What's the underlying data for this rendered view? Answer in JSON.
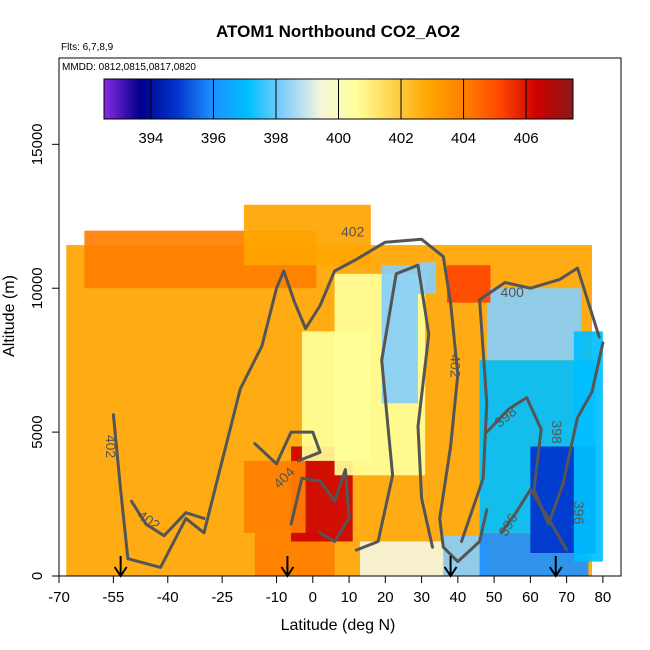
{
  "chart_data": {
    "type": "heatmap",
    "title": "ATOM1 Northbound CO2_AO2",
    "notes": [
      "Flts: 6,7,8,9",
      "MMDD: 0812,0815,0817,0820"
    ],
    "xlabel": "Latitude (deg N)",
    "ylabel": "Altitude (m)",
    "xlim": [
      -70,
      85
    ],
    "ylim": [
      0,
      18000
    ],
    "x_ticks": [
      "-70",
      "-55",
      "-40",
      "-25",
      "-10",
      "0",
      "10",
      "20",
      "30",
      "40",
      "50",
      "60",
      "70",
      "80"
    ],
    "x_tick_values": [
      -70,
      -55,
      -40,
      -25,
      -10,
      0,
      10,
      20,
      30,
      40,
      50,
      60,
      70,
      80
    ],
    "y_ticks": [
      "0",
      "5000",
      "10000",
      "15000"
    ],
    "y_tick_values": [
      0,
      5000,
      10000,
      15000
    ],
    "colorbar": {
      "min": 392.5,
      "max": 407.5,
      "ticks": [
        "394",
        "396",
        "398",
        "400",
        "402",
        "404",
        "406"
      ],
      "tick_values": [
        394,
        396,
        398,
        400,
        402,
        404,
        406
      ],
      "colors": [
        "#8a2be2",
        "#00008b",
        "#0033cc",
        "#1e90ff",
        "#00bfff",
        "#87cefa",
        "#f5f5dc",
        "#ffff99",
        "#ffd24d",
        "#ffa500",
        "#ff7f00",
        "#ff4500",
        "#cc0000",
        "#8b1a1a"
      ]
    },
    "regions": [
      {
        "lat_min": -68,
        "lat_max": 77,
        "alt_min": 0,
        "alt_max": 11500,
        "co2": 402.5
      },
      {
        "lat_min": -63,
        "lat_max": 1,
        "alt_min": 10000,
        "alt_max": 12000,
        "co2": 404
      },
      {
        "lat_min": -19,
        "lat_max": 16,
        "alt_min": 10800,
        "alt_max": 12900,
        "co2": 403
      },
      {
        "lat_min": -16,
        "lat_max": 6,
        "alt_min": 0,
        "alt_max": 1500,
        "co2": 404.5
      },
      {
        "lat_min": -6,
        "lat_max": 11,
        "alt_min": 1200,
        "alt_max": 4500,
        "co2": 406
      },
      {
        "lat_min": -19,
        "lat_max": -2,
        "alt_min": 1500,
        "alt_max": 4000,
        "co2": 404.5
      },
      {
        "lat_min": -3,
        "lat_max": 16,
        "alt_min": 4000,
        "alt_max": 8500,
        "co2": 401
      },
      {
        "lat_min": 6,
        "lat_max": 31,
        "alt_min": 3500,
        "alt_max": 10500,
        "co2": 400
      },
      {
        "lat_min": 19,
        "lat_max": 29,
        "alt_min": 6000,
        "alt_max": 10800,
        "co2": 398.8
      },
      {
        "lat_min": 13,
        "lat_max": 36,
        "alt_min": 0,
        "alt_max": 1200,
        "co2": 399.5
      },
      {
        "lat_min": 36,
        "lat_max": 48,
        "alt_min": 0,
        "alt_max": 1400,
        "co2": 398
      },
      {
        "lat_min": 46,
        "lat_max": 76,
        "alt_min": 0,
        "alt_max": 1500,
        "co2": 395.5
      },
      {
        "lat_min": 46,
        "lat_max": 78,
        "alt_min": 1500,
        "alt_max": 7500,
        "co2": 397.2
      },
      {
        "lat_min": 48,
        "lat_max": 74,
        "alt_min": 7500,
        "alt_max": 10000,
        "co2": 397.8
      },
      {
        "lat_min": 60,
        "lat_max": 78,
        "alt_min": 800,
        "alt_max": 4500,
        "co2": 395
      },
      {
        "lat_min": 72,
        "lat_max": 80,
        "alt_min": 500,
        "alt_max": 8500,
        "co2": 397
      },
      {
        "lat_min": 37,
        "lat_max": 49,
        "alt_min": 9500,
        "alt_max": 10800,
        "co2": 405
      },
      {
        "lat_min": 29,
        "lat_max": 34,
        "alt_min": 9800,
        "alt_max": 10900,
        "co2": 398.5
      }
    ],
    "contours": [
      {
        "level": "402",
        "points": [
          [
            -55,
            5600
          ],
          [
            -53,
            3000
          ],
          [
            -51,
            600
          ],
          [
            -42,
            300
          ],
          [
            -35,
            2000
          ],
          [
            -30,
            1500
          ],
          [
            -26,
            3500
          ],
          [
            -20,
            6500
          ],
          [
            -14,
            8000
          ],
          [
            -10,
            10000
          ],
          [
            -8,
            10600
          ],
          [
            -5,
            9500
          ],
          [
            -2,
            8600
          ],
          [
            2,
            9400
          ],
          [
            6,
            10600
          ],
          [
            12,
            11000
          ],
          [
            20,
            11600
          ],
          [
            30,
            11700
          ],
          [
            36,
            11100
          ],
          [
            38,
            9500
          ],
          [
            40,
            7000
          ],
          [
            38,
            4500
          ],
          [
            35,
            2000
          ],
          [
            36,
            1000
          ],
          [
            40,
            500
          ],
          [
            46,
            1200
          ],
          [
            48,
            2300
          ]
        ]
      },
      {
        "level": "402",
        "points": [
          [
            -50,
            2600
          ],
          [
            -46,
            1800
          ],
          [
            -41,
            1400
          ],
          [
            -35,
            2200
          ],
          [
            -30,
            2000
          ]
        ]
      },
      {
        "level": "400",
        "points": [
          [
            12,
            900
          ],
          [
            18,
            1200
          ],
          [
            22,
            3500
          ],
          [
            19,
            7500
          ],
          [
            23,
            10500
          ],
          [
            29,
            10800
          ],
          [
            32,
            8400
          ],
          [
            29,
            5200
          ],
          [
            30,
            2700
          ],
          [
            33,
            1000
          ]
        ]
      },
      {
        "level": "400",
        "points": [
          [
            41,
            1200
          ],
          [
            47,
            3400
          ],
          [
            48,
            6000
          ],
          [
            46,
            9600
          ],
          [
            53,
            10200
          ],
          [
            60,
            10000
          ],
          [
            68,
            10300
          ],
          [
            73,
            10700
          ],
          [
            76,
            9500
          ],
          [
            79,
            8300
          ]
        ]
      },
      {
        "level": "398",
        "points": [
          [
            48,
            5000
          ],
          [
            54,
            5800
          ],
          [
            59,
            6200
          ],
          [
            63,
            5100
          ],
          [
            61,
            3000
          ],
          [
            65,
            1800
          ],
          [
            69,
            3200
          ],
          [
            73,
            5500
          ],
          [
            77,
            6400
          ],
          [
            80,
            8100
          ]
        ]
      },
      {
        "level": "396",
        "points": [
          [
            52,
            1500
          ],
          [
            56,
            2200
          ],
          [
            60,
            3000
          ],
          [
            65,
            2000
          ],
          [
            70,
            900
          ]
        ]
      },
      {
        "level": "404",
        "points": [
          [
            -6,
            1800
          ],
          [
            -3,
            3400
          ],
          [
            2,
            3300
          ],
          [
            6,
            2600
          ],
          [
            9,
            3700
          ],
          [
            10,
            2000
          ],
          [
            6,
            1200
          ],
          [
            2,
            1500
          ]
        ]
      },
      {
        "level": "402",
        "points": [
          [
            -16,
            4600
          ],
          [
            -10,
            3900
          ],
          [
            -6,
            5000
          ],
          [
            0,
            5000
          ],
          [
            2,
            4300
          ],
          [
            -4,
            4000
          ]
        ]
      }
    ],
    "arrows_lat": [
      -53,
      -7,
      38,
      67
    ],
    "contour_labels": [
      {
        "text": "402",
        "lat": -57,
        "alt": 4500,
        "rotate": 90
      },
      {
        "text": "402",
        "lat": -46,
        "alt": 1800,
        "rotate": 35
      },
      {
        "text": "402",
        "lat": 11,
        "alt": 11800,
        "rotate": 0
      },
      {
        "text": "402",
        "lat": 38,
        "alt": 7300,
        "rotate": 90
      },
      {
        "text": "400",
        "lat": 55,
        "alt": 9700,
        "rotate": 0
      },
      {
        "text": "398",
        "lat": 54,
        "alt": 5400,
        "rotate": -40
      },
      {
        "text": "398",
        "lat": 66,
        "alt": 5000,
        "rotate": 90
      },
      {
        "text": "404",
        "lat": -7,
        "alt": 3300,
        "rotate": -45
      },
      {
        "text": "396",
        "lat": 55,
        "alt": 1700,
        "rotate": -60
      },
      {
        "text": "396",
        "lat": 72,
        "alt": 2200,
        "rotate": 90
      }
    ]
  }
}
